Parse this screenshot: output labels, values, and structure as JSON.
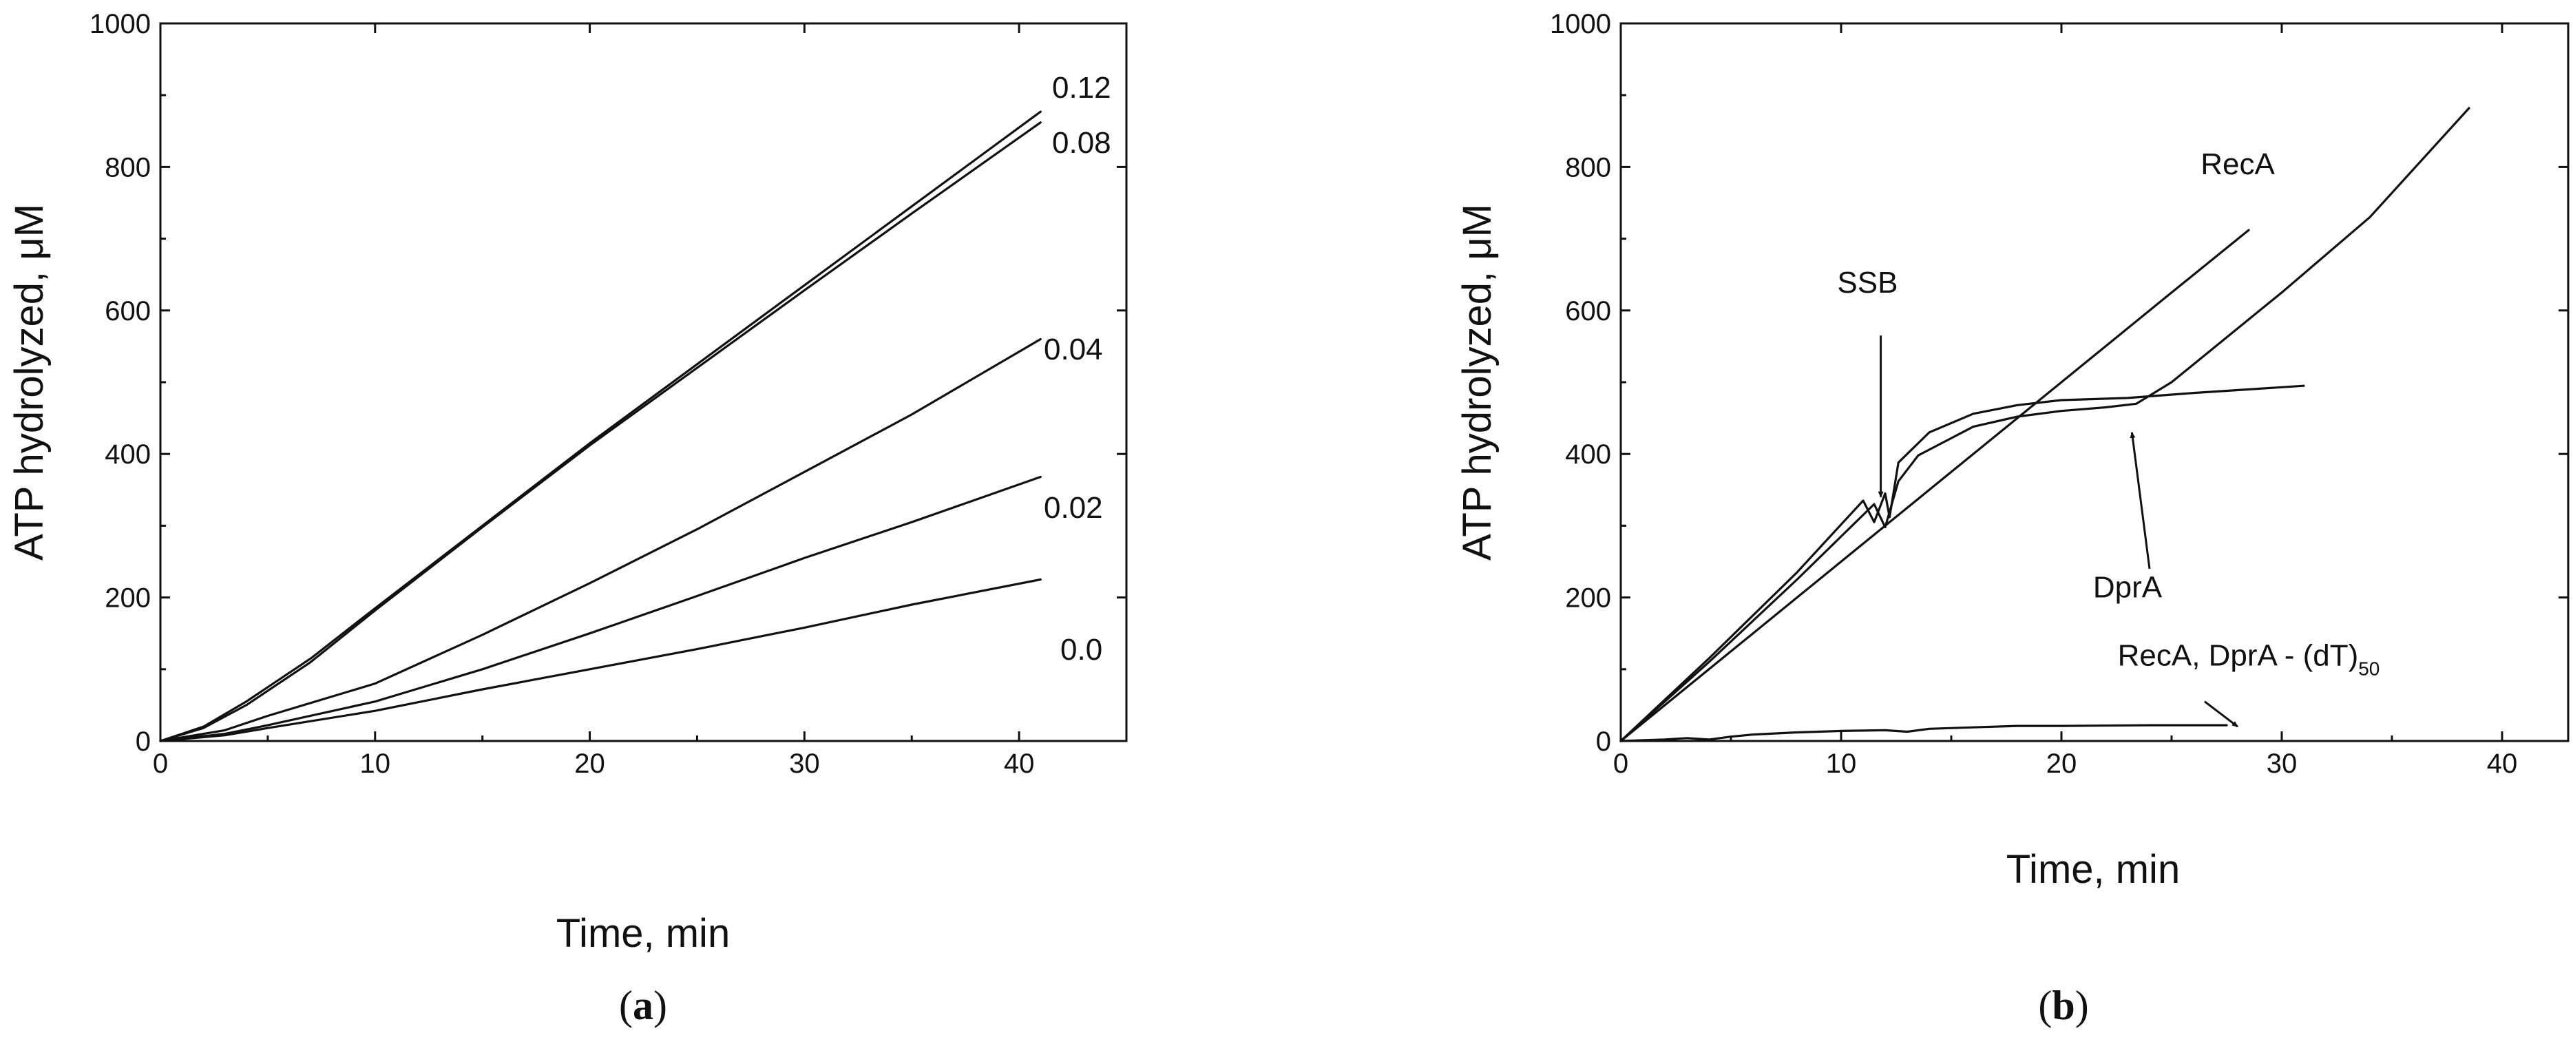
{
  "chart_data": [
    {
      "panel": "a",
      "type": "line",
      "xlabel": "Time, min",
      "ylabel": "ATP hydrolyzed, μM",
      "xlim": [
        0,
        45
      ],
      "ylim": [
        0,
        1000
      ],
      "x_ticks": [
        0,
        10,
        20,
        30,
        40
      ],
      "y_ticks": [
        0,
        200,
        400,
        600,
        800,
        1000
      ],
      "grid": false,
      "panel_label": "(a)",
      "series": [
        {
          "name": "0.12",
          "points": [
            [
              0,
              0
            ],
            [
              2,
              20
            ],
            [
              4,
              55
            ],
            [
              7,
              115
            ],
            [
              10,
              185
            ],
            [
              15,
              300
            ],
            [
              20,
              415
            ],
            [
              25,
              525
            ],
            [
              30,
              635
            ],
            [
              35,
              745
            ],
            [
              41,
              877
            ]
          ]
        },
        {
          "name": "0.08",
          "points": [
            [
              0,
              0
            ],
            [
              2,
              18
            ],
            [
              4,
              50
            ],
            [
              7,
              110
            ],
            [
              10,
              182
            ],
            [
              15,
              298
            ],
            [
              20,
              412
            ],
            [
              25,
              520
            ],
            [
              30,
              628
            ],
            [
              35,
              735
            ],
            [
              41,
              862
            ]
          ]
        },
        {
          "name": "0.04",
          "points": [
            [
              0,
              0
            ],
            [
              3,
              15
            ],
            [
              5,
              35
            ],
            [
              10,
              80
            ],
            [
              15,
              148
            ],
            [
              20,
              220
            ],
            [
              25,
              295
            ],
            [
              30,
              375
            ],
            [
              35,
              455
            ],
            [
              41,
              560
            ]
          ]
        },
        {
          "name": "0.02",
          "points": [
            [
              0,
              0
            ],
            [
              3,
              10
            ],
            [
              5,
              22
            ],
            [
              10,
              55
            ],
            [
              15,
              100
            ],
            [
              20,
              150
            ],
            [
              25,
              202
            ],
            [
              30,
              255
            ],
            [
              35,
              305
            ],
            [
              41,
              368
            ]
          ]
        },
        {
          "name": "0.0",
          "points": [
            [
              0,
              0
            ],
            [
              3,
              8
            ],
            [
              5,
              18
            ],
            [
              10,
              42
            ],
            [
              15,
              72
            ],
            [
              20,
              100
            ],
            [
              25,
              128
            ],
            [
              30,
              158
            ],
            [
              35,
              190
            ],
            [
              41,
              225
            ]
          ]
        }
      ]
    },
    {
      "panel": "b",
      "type": "line",
      "xlabel": "Time, min",
      "ylabel": "ATP hydrolyzed, μM",
      "xlim": [
        0,
        43
      ],
      "ylim": [
        0,
        1000
      ],
      "x_ticks": [
        0,
        10,
        20,
        30,
        40
      ],
      "y_ticks": [
        0,
        200,
        400,
        600,
        800,
        1000
      ],
      "grid": false,
      "panel_label": "(b)",
      "annotations": [
        {
          "text": "RecA",
          "x": 28,
          "y": 790
        },
        {
          "text": "SSB",
          "x": 11.2,
          "y": 625,
          "arrow_to": [
            11.8,
            340
          ]
        },
        {
          "text": "DprA",
          "x": 23,
          "y": 200,
          "arrow_to": [
            23.2,
            430
          ]
        },
        {
          "text": "RecA, DprA - (dT)",
          "subscript": "50",
          "x": 28.5,
          "y": 105,
          "arrow_to": [
            28,
            20
          ]
        }
      ],
      "series": [
        {
          "name": "RecA",
          "points": [
            [
              0,
              0
            ],
            [
              5,
              125
            ],
            [
              10,
              250
            ],
            [
              15,
              375
            ],
            [
              20,
              500
            ],
            [
              25,
              625
            ],
            [
              28.5,
              712
            ]
          ]
        },
        {
          "points": [
            [
              0,
              0
            ],
            [
              4,
              115
            ],
            [
              8,
              235
            ],
            [
              11,
              335
            ],
            [
              11.5,
              305
            ],
            [
              12,
              345
            ],
            [
              12.2,
              312
            ],
            [
              12.6,
              388
            ],
            [
              14,
              430
            ],
            [
              16,
              456
            ],
            [
              18,
              468
            ],
            [
              20,
              475
            ],
            [
              23,
              478
            ],
            [
              26,
              485
            ],
            [
              31,
              495
            ]
          ]
        },
        {
          "points": [
            [
              0,
              0
            ],
            [
              4,
              110
            ],
            [
              8,
              225
            ],
            [
              11.5,
              330
            ],
            [
              12,
              298
            ],
            [
              12.6,
              362
            ],
            [
              13.5,
              398
            ],
            [
              16,
              438
            ],
            [
              18,
              452
            ],
            [
              20,
              460
            ],
            [
              22,
              465
            ],
            [
              23.4,
              470
            ],
            [
              25,
              500
            ],
            [
              27,
              550
            ],
            [
              30,
              625
            ],
            [
              34,
              730
            ],
            [
              38.5,
              882
            ]
          ]
        },
        {
          "points": [
            [
              0,
              0
            ],
            [
              2,
              2
            ],
            [
              3,
              4
            ],
            [
              4,
              2
            ],
            [
              5,
              6
            ],
            [
              6,
              9
            ],
            [
              8,
              12
            ],
            [
              10,
              14
            ],
            [
              12,
              15
            ],
            [
              13,
              13
            ],
            [
              14,
              17
            ],
            [
              16,
              19
            ],
            [
              18,
              21
            ],
            [
              20,
              21
            ],
            [
              24,
              22
            ],
            [
              27.5,
              22
            ]
          ]
        }
      ]
    }
  ]
}
